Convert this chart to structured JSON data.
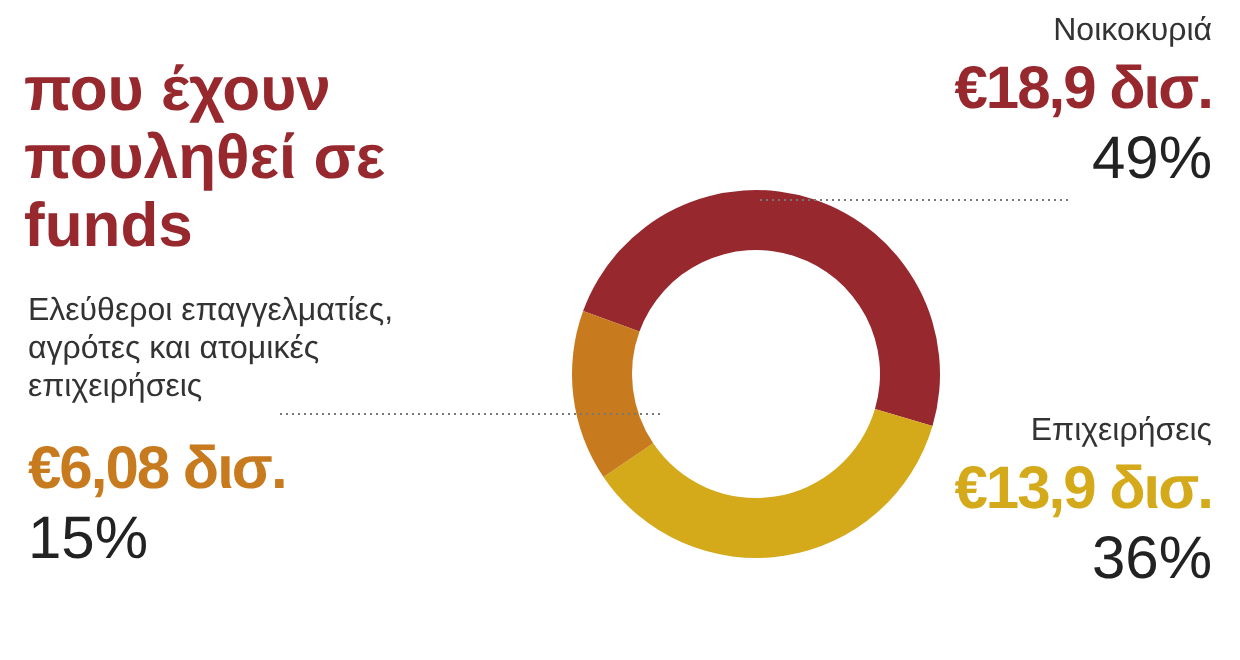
{
  "chart_data": {
    "type": "donut",
    "title": "που έχουν πουληθεί σε funds",
    "categories": [
      "Νοικοκυριά",
      "Επιχειρήσεις",
      "Ελεύθεροι επαγγελματίες, αγρότες και ατομικές επιχειρήσεις"
    ],
    "values": [
      49,
      36,
      15
    ],
    "colors": [
      "#96282e",
      "#d4a91a",
      "#c87a1e"
    ],
    "value_labels": [
      "€18,9 δισ.\n49%",
      "€13,9 δισ.\n36%",
      "€6,08 δισ.\n15%"
    ],
    "legend": false
  }
}
